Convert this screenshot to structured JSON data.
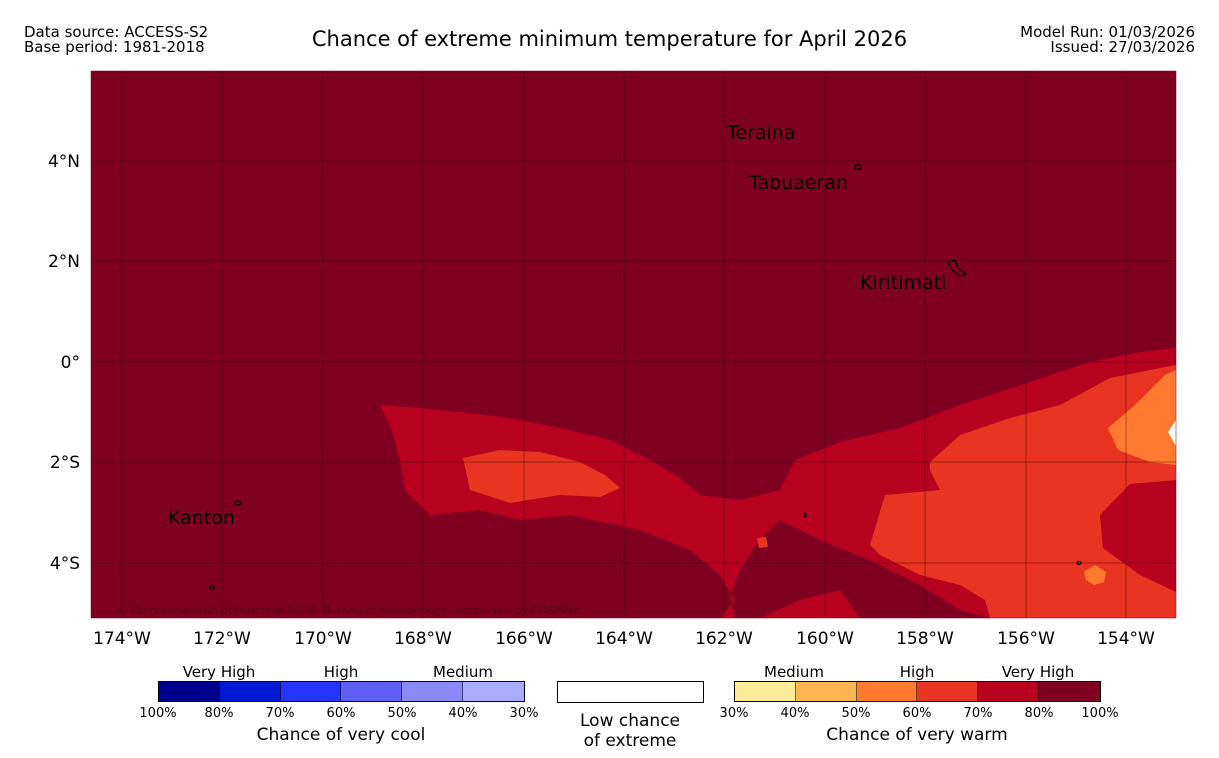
{
  "header": {
    "data_source": "Data source: ACCESS-S2",
    "base_period": "Base period: 1981-2018",
    "title": "Chance of extreme minimum temperature for April 2026",
    "model_run": "Model Run: 01/03/2026",
    "issued": "Issued: 27/03/2026"
  },
  "map": {
    "lon_labels": [
      "174°W",
      "172°W",
      "170°W",
      "168°W",
      "166°W",
      "164°W",
      "162°W",
      "160°W",
      "158°W",
      "156°W",
      "154°W"
    ],
    "lat_labels": [
      "4°N",
      "2°N",
      "0°",
      "2°S",
      "4°S"
    ],
    "places": [
      "Teraina",
      "Tabuaeran",
      "Kiritimati",
      "Kanton"
    ],
    "credit": "© Commonwealth of Australia 2026, Bureau of Meteorology, supported by COSPPac",
    "colors": {
      "very_high_warm": "#7f0020",
      "high_70_80": "#b8001f",
      "high_60_70": "#e83420",
      "medium_50_60": "#ff7a2e"
    }
  },
  "legend": {
    "cool": {
      "categories": [
        "Very High",
        "High",
        "Medium"
      ],
      "colors": [
        "#00008f",
        "#0019d4",
        "#2635ff",
        "#6060f8",
        "#8989f8",
        "#aaaaff"
      ],
      "percent_labels": [
        "100%",
        "80%",
        "70%",
        "60%",
        "50%",
        "40%",
        "30%"
      ],
      "caption": "Chance of very cool"
    },
    "low": {
      "caption_line1": "Low chance",
      "caption_line2": "of extreme"
    },
    "warm": {
      "categories": [
        "Medium",
        "High",
        "Very High"
      ],
      "colors": [
        "#ffec99",
        "#fdb550",
        "#ff7a2e",
        "#e83420",
        "#b8001f",
        "#7f0020"
      ],
      "percent_labels": [
        "30%",
        "40%",
        "50%",
        "60%",
        "70%",
        "80%",
        "100%"
      ],
      "caption": "Chance of very warm"
    }
  }
}
